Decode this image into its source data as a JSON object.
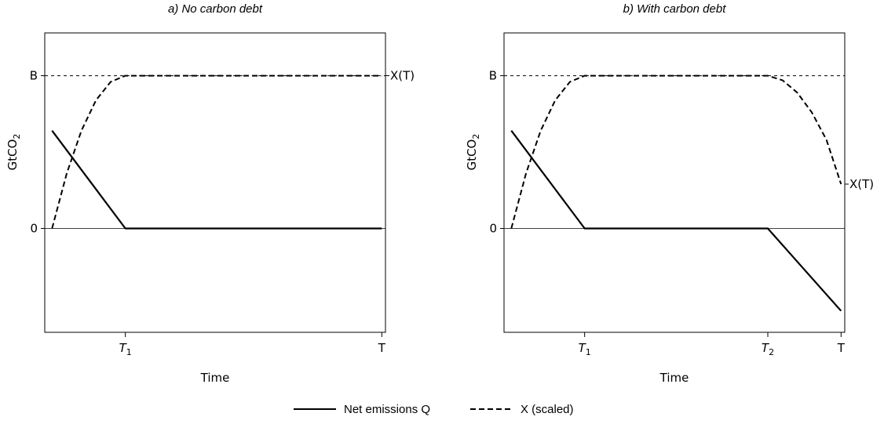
{
  "chart_data": [
    {
      "type": "line",
      "title": "a) No carbon debt",
      "xlabel": "Time",
      "ylabel": "GtCO",
      "ylabel_subscript": "2",
      "y_ticks": [
        {
          "label": "B",
          "value": 1
        },
        {
          "label": "0",
          "value": 0
        }
      ],
      "x_ticks": [
        {
          "label": "T",
          "sub": "1",
          "italic": true,
          "value": 1
        },
        {
          "label": "T",
          "sub": "",
          "italic": false,
          "value": 4.5
        }
      ],
      "xlim": [
        -0.1,
        4.55
      ],
      "ylim": [
        -0.68,
        1.28
      ],
      "ceiling_label": "X(T)",
      "series": [
        {
          "name": "Net emissions Q",
          "style": "solid",
          "x": [
            0.0,
            1.0,
            4.5
          ],
          "y": [
            0.64,
            0.0,
            0.0
          ]
        },
        {
          "name": "X (scaled)",
          "style": "dashed",
          "x": [
            0.0,
            0.2,
            0.4,
            0.6,
            0.8,
            1.0,
            1.5,
            2.0,
            2.5,
            3.0,
            3.5,
            4.0,
            4.5
          ],
          "y": [
            0.0,
            0.36,
            0.64,
            0.84,
            0.96,
            1.0,
            1.0,
            1.0,
            1.0,
            1.0,
            1.0,
            1.0,
            1.0
          ]
        }
      ]
    },
    {
      "type": "line",
      "title": "b) With carbon debt",
      "xlabel": "Time",
      "ylabel": "GtCO",
      "ylabel_subscript": "2",
      "y_ticks": [
        {
          "label": "B",
          "value": 1
        },
        {
          "label": "0",
          "value": 0
        }
      ],
      "x_ticks": [
        {
          "label": "T",
          "sub": "1",
          "italic": true,
          "value": 1
        },
        {
          "label": "T",
          "sub": "2",
          "italic": true,
          "value": 3.5
        },
        {
          "label": "T",
          "sub": "",
          "italic": false,
          "value": 4.5
        }
      ],
      "xlim": [
        -0.1,
        4.55
      ],
      "ylim": [
        -0.68,
        1.28
      ],
      "ceiling_label": "X(T)",
      "series": [
        {
          "name": "Net emissions Q",
          "style": "solid",
          "x": [
            0.0,
            1.0,
            3.5,
            4.5
          ],
          "y": [
            0.64,
            0.0,
            0.0,
            -0.54
          ]
        },
        {
          "name": "X (scaled)",
          "style": "dashed",
          "x": [
            0.0,
            0.2,
            0.4,
            0.6,
            0.8,
            1.0,
            1.5,
            2.0,
            2.5,
            3.0,
            3.5,
            3.7,
            3.9,
            4.1,
            4.3,
            4.5
          ],
          "y": [
            0.0,
            0.36,
            0.64,
            0.84,
            0.96,
            1.0,
            1.0,
            1.0,
            1.0,
            1.0,
            1.0,
            0.97,
            0.89,
            0.76,
            0.58,
            0.29
          ]
        }
      ]
    }
  ],
  "legend": {
    "placement": "bottom-center",
    "items": [
      {
        "label": "Net emissions Q",
        "style": "solid"
      },
      {
        "label": "X (scaled)",
        "style": "dashed"
      }
    ]
  }
}
